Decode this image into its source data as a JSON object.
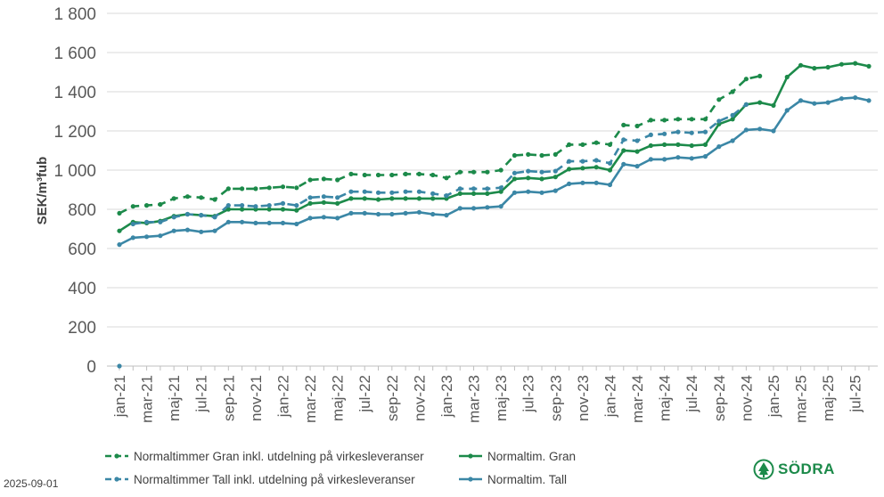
{
  "chart_data": {
    "type": "line",
    "ylabel": "SEK/m³fub",
    "ylim": [
      0,
      1800
    ],
    "yticks": [
      "0",
      "200",
      "400",
      "600",
      "800",
      "1 000",
      "1 200",
      "1 400",
      "1 600",
      "1 800"
    ],
    "months_count": 56,
    "x_tick_labels": [
      "jan-21",
      "mar-21",
      "maj-21",
      "jul-21",
      "sep-21",
      "nov-21",
      "jan-22",
      "mar-22",
      "maj-22",
      "jul-22",
      "sep-22",
      "nov-22",
      "jan-23",
      "mar-23",
      "maj-23",
      "jul-23",
      "sep-23",
      "nov-23",
      "jan-24",
      "mar-24",
      "maj-24",
      "jul-24",
      "sep-24",
      "nov-24",
      "jan-25",
      "mar-25",
      "maj-25",
      "jul-25"
    ],
    "grid": true,
    "legend_position": "bottom",
    "series": [
      {
        "name": "Normaltimmer Gran inkl. utdelning på virkesleveranser",
        "color": "#1c8a4a",
        "dashed": true,
        "values": [
          780,
          815,
          820,
          825,
          855,
          865,
          860,
          850,
          905,
          905,
          905,
          910,
          915,
          910,
          950,
          955,
          950,
          980,
          975,
          975,
          975,
          980,
          980,
          975,
          960,
          990,
          990,
          990,
          1000,
          1075,
          1080,
          1075,
          1080,
          1130,
          1130,
          1140,
          1130,
          1230,
          1225,
          1255,
          1255,
          1260,
          1260,
          1260,
          1360,
          1400,
          1465,
          1480
        ]
      },
      {
        "name": "Normaltim. Gran",
        "color": "#1c8a4a",
        "dashed": false,
        "values": [
          690,
          735,
          730,
          740,
          765,
          775,
          770,
          765,
          800,
          800,
          800,
          800,
          800,
          795,
          830,
          835,
          830,
          855,
          855,
          850,
          855,
          855,
          855,
          855,
          855,
          880,
          880,
          880,
          890,
          955,
          960,
          955,
          965,
          1005,
          1010,
          1015,
          1000,
          1100,
          1095,
          1125,
          1130,
          1130,
          1125,
          1130,
          1235,
          1260,
          1335,
          1345,
          1330,
          1475,
          1535,
          1520,
          1525,
          1540,
          1545,
          1530
        ]
      },
      {
        "name": "Normaltimmer Tall inkl. utdelning på virkesleveranser",
        "color": "#3b87a6",
        "dashed": true,
        "values": [
          0,
          725,
          735,
          735,
          760,
          775,
          770,
          760,
          820,
          820,
          815,
          820,
          830,
          820,
          860,
          865,
          860,
          890,
          890,
          885,
          885,
          890,
          890,
          880,
          870,
          905,
          905,
          905,
          910,
          985,
          995,
          990,
          995,
          1045,
          1045,
          1050,
          1035,
          1155,
          1150,
          1180,
          1185,
          1195,
          1190,
          1195,
          1250,
          1280,
          1335
        ]
      },
      {
        "name": "Normaltim. Tall",
        "color": "#3b87a6",
        "dashed": false,
        "values": [
          620,
          655,
          660,
          665,
          690,
          695,
          685,
          690,
          735,
          735,
          730,
          730,
          730,
          725,
          755,
          760,
          755,
          780,
          780,
          775,
          775,
          780,
          785,
          775,
          770,
          805,
          805,
          810,
          815,
          885,
          890,
          885,
          895,
          930,
          935,
          935,
          925,
          1030,
          1020,
          1055,
          1055,
          1065,
          1060,
          1070,
          1120,
          1150,
          1205,
          1210,
          1200,
          1305,
          1355,
          1340,
          1345,
          1365,
          1370,
          1355
        ]
      }
    ]
  },
  "footer": {
    "date": "2025-09-01",
    "logo_text": "SÖDRA"
  }
}
